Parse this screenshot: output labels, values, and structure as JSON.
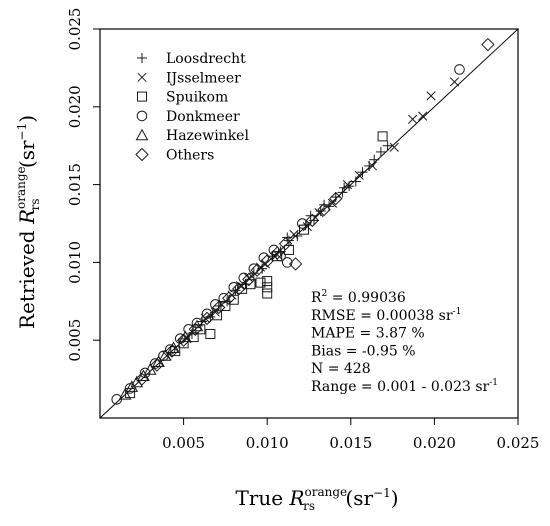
{
  "chart_data": {
    "type": "scatter",
    "xlabel": {
      "prefix": "True ",
      "var": "R",
      "sub": "rs",
      "sup": "orange",
      "unit": " (sr",
      "unit_exp": "−1",
      "unit_close": ")"
    },
    "ylabel": {
      "prefix": "Retrieved ",
      "var": "R",
      "sub": "rs",
      "sup": "orange",
      "unit": " (sr",
      "unit_exp": "−1",
      "unit_close": ")"
    },
    "xlim": [
      0.0,
      0.025
    ],
    "ylim": [
      0.0,
      0.025
    ],
    "xticks": [
      0.005,
      0.01,
      0.015,
      0.02,
      0.025
    ],
    "xtick_labels": [
      "0.005",
      "0.010",
      "0.015",
      "0.020",
      "0.025"
    ],
    "yticks": [
      0.005,
      0.01,
      0.015,
      0.02,
      0.025
    ],
    "ytick_labels": [
      "0.005",
      "0.010",
      "0.015",
      "0.020",
      "0.025"
    ],
    "reference_line": "1:1",
    "legend_position": "top-left",
    "series": [
      {
        "name": "Loosdrecht",
        "marker": "plus",
        "points": [
          [
            0.0055,
            0.0054
          ],
          [
            0.0061,
            0.0062
          ],
          [
            0.0066,
            0.0065
          ],
          [
            0.0071,
            0.0072
          ],
          [
            0.0076,
            0.0075
          ],
          [
            0.0081,
            0.0082
          ],
          [
            0.0087,
            0.0086
          ],
          [
            0.0092,
            0.0093
          ],
          [
            0.0097,
            0.0096
          ],
          [
            0.0103,
            0.0104
          ],
          [
            0.0108,
            0.0107
          ],
          [
            0.0113,
            0.0114
          ],
          [
            0.0118,
            0.0117
          ],
          [
            0.0123,
            0.0124
          ],
          [
            0.0128,
            0.0127
          ],
          [
            0.0132,
            0.0133
          ],
          [
            0.0137,
            0.0136
          ],
          [
            0.0141,
            0.0142
          ],
          [
            0.0145,
            0.0145
          ],
          [
            0.0149,
            0.0149
          ],
          [
            0.0153,
            0.0152
          ],
          [
            0.0157,
            0.0158
          ],
          [
            0.0161,
            0.0162
          ],
          [
            0.0164,
            0.0166
          ],
          [
            0.0168,
            0.0171
          ],
          [
            0.0172,
            0.0175
          ],
          [
            0.0112,
            0.0116
          ],
          [
            0.0126,
            0.013
          ],
          [
            0.0134,
            0.0137
          ],
          [
            0.0146,
            0.0148
          ]
        ]
      },
      {
        "name": "IJsselmeer",
        "marker": "cross",
        "points": [
          [
            0.004,
            0.004
          ],
          [
            0.0052,
            0.0051
          ],
          [
            0.0063,
            0.0064
          ],
          [
            0.0069,
            0.0068
          ],
          [
            0.0079,
            0.0079
          ],
          [
            0.0089,
            0.009
          ],
          [
            0.0099,
            0.0099
          ],
          [
            0.0106,
            0.0105
          ],
          [
            0.0116,
            0.0118
          ],
          [
            0.0124,
            0.0123
          ],
          [
            0.0131,
            0.0132
          ],
          [
            0.0139,
            0.0138
          ],
          [
            0.0148,
            0.015
          ],
          [
            0.0155,
            0.0156
          ],
          [
            0.0163,
            0.0162
          ],
          [
            0.0176,
            0.0174
          ],
          [
            0.0187,
            0.0192
          ],
          [
            0.0193,
            0.0194
          ],
          [
            0.0198,
            0.0207
          ],
          [
            0.0212,
            0.0216
          ],
          [
            0.0096,
            0.0097
          ],
          [
            0.0084,
            0.0085
          ]
        ]
      },
      {
        "name": "Spuikom",
        "marker": "square",
        "points": [
          [
            0.0018,
            0.0016
          ],
          [
            0.0045,
            0.0043
          ],
          [
            0.005,
            0.0048
          ],
          [
            0.0056,
            0.0052
          ],
          [
            0.006,
            0.0057
          ],
          [
            0.0066,
            0.0054
          ],
          [
            0.007,
            0.0066
          ],
          [
            0.0075,
            0.0072
          ],
          [
            0.008,
            0.0076
          ],
          [
            0.0085,
            0.0083
          ],
          [
            0.009,
            0.0086
          ],
          [
            0.0096,
            0.0087
          ],
          [
            0.01,
            0.0088
          ],
          [
            0.01,
            0.0084
          ],
          [
            0.01,
            0.008
          ],
          [
            0.0106,
            0.0104
          ],
          [
            0.0113,
            0.0108
          ],
          [
            0.0122,
            0.0121
          ],
          [
            0.0169,
            0.0181
          ]
        ]
      },
      {
        "name": "Donkmeer",
        "marker": "circle",
        "points": [
          [
            0.001,
            0.0012
          ],
          [
            0.0018,
            0.0019
          ],
          [
            0.0027,
            0.0029
          ],
          [
            0.0033,
            0.0035
          ],
          [
            0.0038,
            0.004
          ],
          [
            0.0042,
            0.0044
          ],
          [
            0.0048,
            0.0051
          ],
          [
            0.0053,
            0.0057
          ],
          [
            0.0058,
            0.0061
          ],
          [
            0.0064,
            0.0067
          ],
          [
            0.0069,
            0.0073
          ],
          [
            0.0074,
            0.0077
          ],
          [
            0.008,
            0.0084
          ],
          [
            0.0086,
            0.009
          ],
          [
            0.0092,
            0.0096
          ],
          [
            0.0098,
            0.0103
          ],
          [
            0.0104,
            0.0108
          ],
          [
            0.0108,
            0.0104
          ],
          [
            0.0112,
            0.01
          ],
          [
            0.0121,
            0.0125
          ],
          [
            0.0215,
            0.0224
          ]
        ]
      },
      {
        "name": "Hazewinkel",
        "marker": "triangle",
        "points": [
          [
            0.0015,
            0.0015
          ],
          [
            0.0019,
            0.002
          ],
          [
            0.0022,
            0.0023
          ],
          [
            0.0026,
            0.0027
          ],
          [
            0.003,
            0.0031
          ],
          [
            0.0035,
            0.0036
          ],
          [
            0.0039,
            0.004
          ],
          [
            0.0044,
            0.0045
          ],
          [
            0.0051,
            0.0052
          ],
          [
            0.0058,
            0.0059
          ]
        ]
      },
      {
        "name": "Others",
        "marker": "diamond",
        "points": [
          [
            0.0025,
            0.0025
          ],
          [
            0.0034,
            0.0034
          ],
          [
            0.0043,
            0.0043
          ],
          [
            0.005,
            0.005
          ],
          [
            0.0057,
            0.0057
          ],
          [
            0.0064,
            0.0064
          ],
          [
            0.0071,
            0.0071
          ],
          [
            0.0077,
            0.0077
          ],
          [
            0.0083,
            0.0083
          ],
          [
            0.0089,
            0.0089
          ],
          [
            0.0094,
            0.0095
          ],
          [
            0.01,
            0.0101
          ],
          [
            0.0106,
            0.0106
          ],
          [
            0.0111,
            0.0112
          ],
          [
            0.0117,
            0.0099
          ],
          [
            0.0127,
            0.0127
          ],
          [
            0.0134,
            0.0134
          ],
          [
            0.0141,
            0.0141
          ],
          [
            0.0232,
            0.024
          ]
        ]
      }
    ],
    "stats": [
      {
        "base": "R",
        "sup": "2",
        "rest": " = 0.99036"
      },
      {
        "base": "RMSE = 0.00038  sr",
        "sup": "-1",
        "rest": ""
      },
      {
        "base": "MAPE = 3.87  %",
        "sup": "",
        "rest": ""
      },
      {
        "base": "Bias = -0.95  %",
        "sup": "",
        "rest": ""
      },
      {
        "base": "N = 428",
        "sup": "",
        "rest": ""
      },
      {
        "base": "Range = 0.001 - 0.023  sr",
        "sup": "-1",
        "rest": ""
      }
    ]
  }
}
